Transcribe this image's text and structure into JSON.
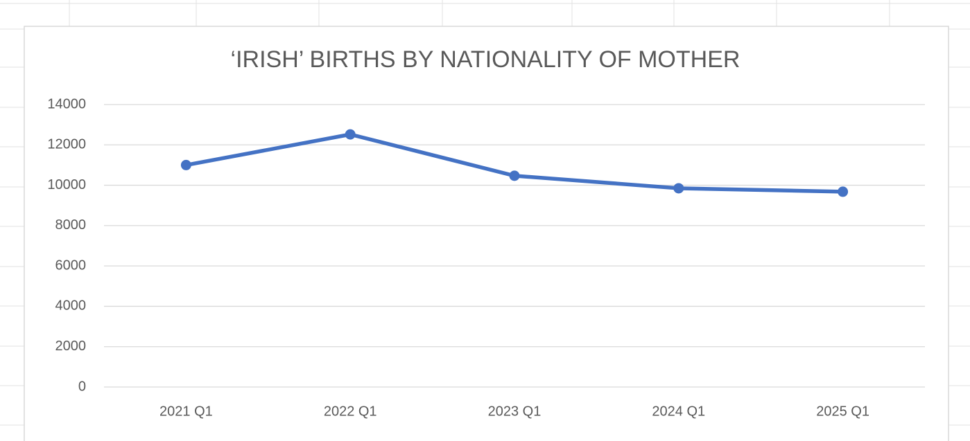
{
  "chart_data": {
    "type": "line",
    "title": "‘IRISH’ BIRTHS BY NATIONALITY OF MOTHER",
    "categories": [
      "2021 Q1",
      "2022 Q1",
      "2023 Q1",
      "2024 Q1",
      "2025 Q1"
    ],
    "values": [
      11000,
      12520,
      10470,
      9850,
      9680
    ],
    "color": "#4472c4",
    "ylim": [
      0,
      14000
    ],
    "yticks": [
      0,
      2000,
      4000,
      6000,
      8000,
      10000,
      12000,
      14000
    ],
    "grid": true
  }
}
